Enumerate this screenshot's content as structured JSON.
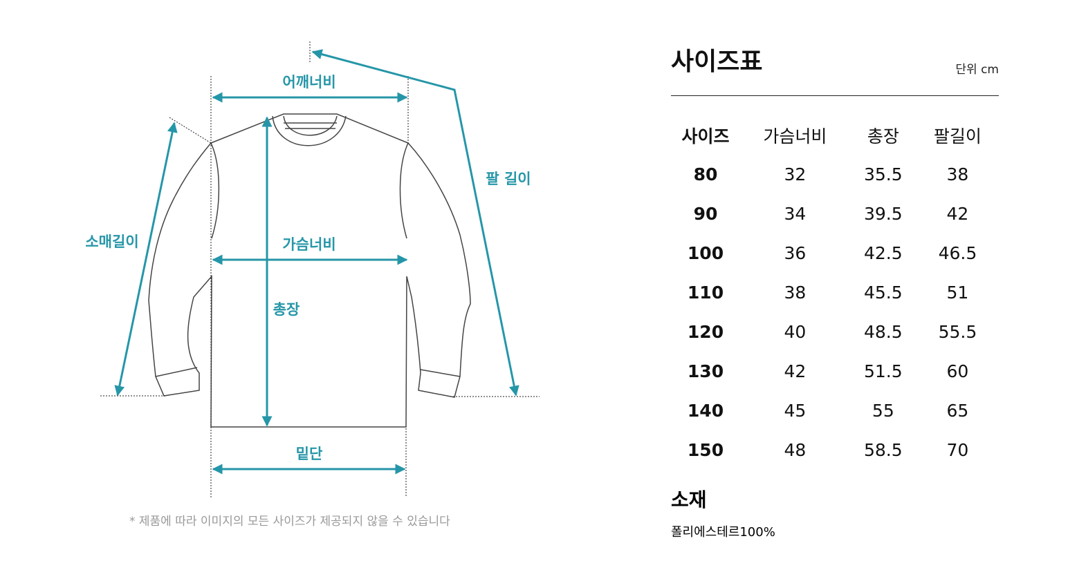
{
  "diagram": {
    "labels": {
      "shoulder": "어깨너비",
      "chest": "가슴너비",
      "length": "총장",
      "hem": "밑단",
      "sleeve": "소매길이",
      "arm": "팔 길이"
    },
    "note": "* 제품에 따라 이미지의 모든 사이즈가 제공되지 않을 수 있습니다",
    "accent": "#2596a8"
  },
  "size_table": {
    "title": "사이즈표",
    "unit": "단위 cm",
    "headers": [
      "사이즈",
      "가슴너비",
      "총장",
      "팔길이"
    ],
    "rows": [
      [
        "80",
        "32",
        "35.5",
        "38"
      ],
      [
        "90",
        "34",
        "39.5",
        "42"
      ],
      [
        "100",
        "36",
        "42.5",
        "46.5"
      ],
      [
        "110",
        "38",
        "45.5",
        "51"
      ],
      [
        "120",
        "40",
        "48.5",
        "55.5"
      ],
      [
        "130",
        "42",
        "51.5",
        "60"
      ],
      [
        "140",
        "45",
        "55",
        "65"
      ],
      [
        "150",
        "48",
        "58.5",
        "70"
      ]
    ]
  },
  "material": {
    "title": "소재",
    "value": "폴리에스테르100%"
  }
}
